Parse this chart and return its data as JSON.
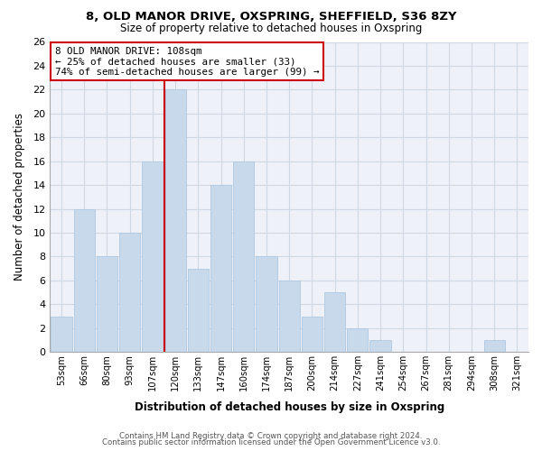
{
  "title": "8, OLD MANOR DRIVE, OXSPRING, SHEFFIELD, S36 8ZY",
  "subtitle": "Size of property relative to detached houses in Oxspring",
  "xlabel": "Distribution of detached houses by size in Oxspring",
  "ylabel": "Number of detached properties",
  "bar_labels": [
    "53sqm",
    "66sqm",
    "80sqm",
    "93sqm",
    "107sqm",
    "120sqm",
    "133sqm",
    "147sqm",
    "160sqm",
    "174sqm",
    "187sqm",
    "200sqm",
    "214sqm",
    "227sqm",
    "241sqm",
    "254sqm",
    "267sqm",
    "281sqm",
    "294sqm",
    "308sqm",
    "321sqm"
  ],
  "bar_values": [
    3,
    12,
    8,
    10,
    16,
    22,
    7,
    14,
    16,
    8,
    6,
    3,
    5,
    2,
    1,
    0,
    0,
    0,
    0,
    1,
    0
  ],
  "bar_color": "#c8d9ec",
  "bar_edge_color": "#afc8e0",
  "grid_color": "#d0d8e4",
  "background_color": "#ffffff",
  "plot_bg_color": "#eef2f8",
  "annotation_box_text": "8 OLD MANOR DRIVE: 108sqm\n← 25% of detached houses are smaller (33)\n74% of semi-detached houses are larger (99) →",
  "annotation_box_edge_color": "#cc0000",
  "red_line_x": 4.5,
  "ylim": [
    0,
    26
  ],
  "yticks": [
    0,
    2,
    4,
    6,
    8,
    10,
    12,
    14,
    16,
    18,
    20,
    22,
    24,
    26
  ],
  "footer_line1": "Contains HM Land Registry data © Crown copyright and database right 2024.",
  "footer_line2": "Contains public sector information licensed under the Open Government Licence v3.0."
}
